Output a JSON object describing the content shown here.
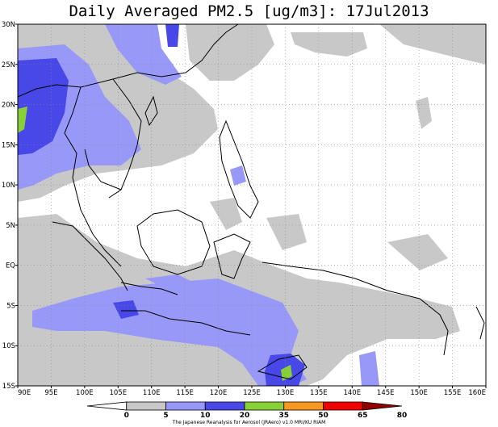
{
  "title": "Daily Averaged PM2.5 [ug/m3]: 17Jul2013",
  "map": {
    "x_ticks": [
      "90E",
      "95E",
      "100E",
      "105E",
      "110E",
      "115E",
      "120E",
      "125E",
      "130E",
      "135E",
      "140E",
      "145E",
      "150E",
      "155E",
      "160E"
    ],
    "y_ticks": [
      "30N",
      "25N",
      "20N",
      "15N",
      "10N",
      "5N",
      "EQ",
      "5S",
      "10S",
      "15S"
    ],
    "lon_range": [
      90,
      160
    ],
    "lat_range": [
      -15,
      30
    ],
    "grid": "dotted"
  },
  "legend": {
    "thresholds": [
      "0",
      "5",
      "10",
      "20",
      "35",
      "50",
      "65",
      "80"
    ],
    "colors": [
      "#ffffff",
      "#c8c8c8",
      "#9898f8",
      "#4848e8",
      "#88d038",
      "#f89820",
      "#f00000",
      "#900000"
    ]
  },
  "credit": "The Japanese Reanalysis for Aerosol (JRAero) v1.0 MRI/KU RIAM"
}
